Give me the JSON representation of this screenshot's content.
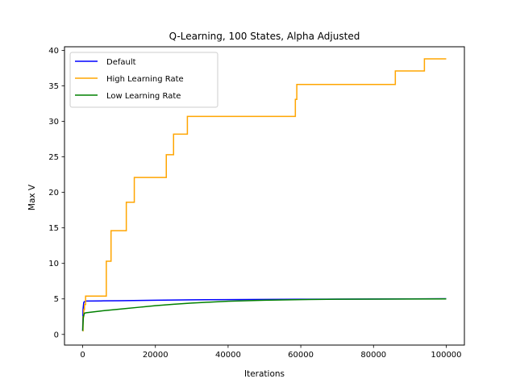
{
  "chart_data": {
    "type": "line",
    "title": "Q-Learning, 100 States, Alpha Adjusted",
    "xlabel": "Iterations",
    "ylabel": "Max V",
    "xlim": [
      -5000,
      105000
    ],
    "ylim": [
      -1.5,
      40.5
    ],
    "xticks": [
      0,
      20000,
      40000,
      60000,
      80000,
      100000
    ],
    "yticks": [
      0,
      5,
      10,
      15,
      20,
      25,
      30,
      35,
      40
    ],
    "grid": false,
    "legend_position": "top-left",
    "series": [
      {
        "name": "Default",
        "color": "#0000ff",
        "step": false,
        "x": [
          0,
          100,
          300,
          600,
          1000,
          5000,
          10000,
          20000,
          30000,
          40000,
          50000,
          60000,
          70000,
          80000,
          90000,
          100000
        ],
        "y": [
          0.5,
          3.5,
          4.5,
          4.65,
          4.7,
          4.72,
          4.75,
          4.82,
          4.87,
          4.9,
          4.93,
          4.95,
          4.97,
          4.98,
          5.0,
          5.02
        ]
      },
      {
        "name": "High Learning Rate",
        "color": "#ffa500",
        "step": true,
        "x": [
          0,
          100,
          300,
          500,
          800,
          6500,
          7800,
          12000,
          14200,
          23000,
          25000,
          28800,
          58500,
          58900,
          86000,
          94000,
          100000
        ],
        "y": [
          0.5,
          2.5,
          3.5,
          4.2,
          5.4,
          10.3,
          14.6,
          18.6,
          22.1,
          25.3,
          28.2,
          30.7,
          33.1,
          35.2,
          37.1,
          38.8,
          38.8
        ]
      },
      {
        "name": "Low Learning Rate",
        "color": "#008000",
        "step": false,
        "x": [
          0,
          200,
          500,
          1000,
          5000,
          10000,
          15000,
          20000,
          25000,
          30000,
          35000,
          40000,
          45000,
          50000,
          60000,
          70000,
          80000,
          90000,
          100000
        ],
        "y": [
          0.5,
          2.5,
          3.0,
          3.05,
          3.3,
          3.55,
          3.8,
          4.05,
          4.25,
          4.42,
          4.55,
          4.67,
          4.75,
          4.82,
          4.9,
          4.95,
          4.97,
          4.99,
          5.0
        ]
      }
    ]
  }
}
